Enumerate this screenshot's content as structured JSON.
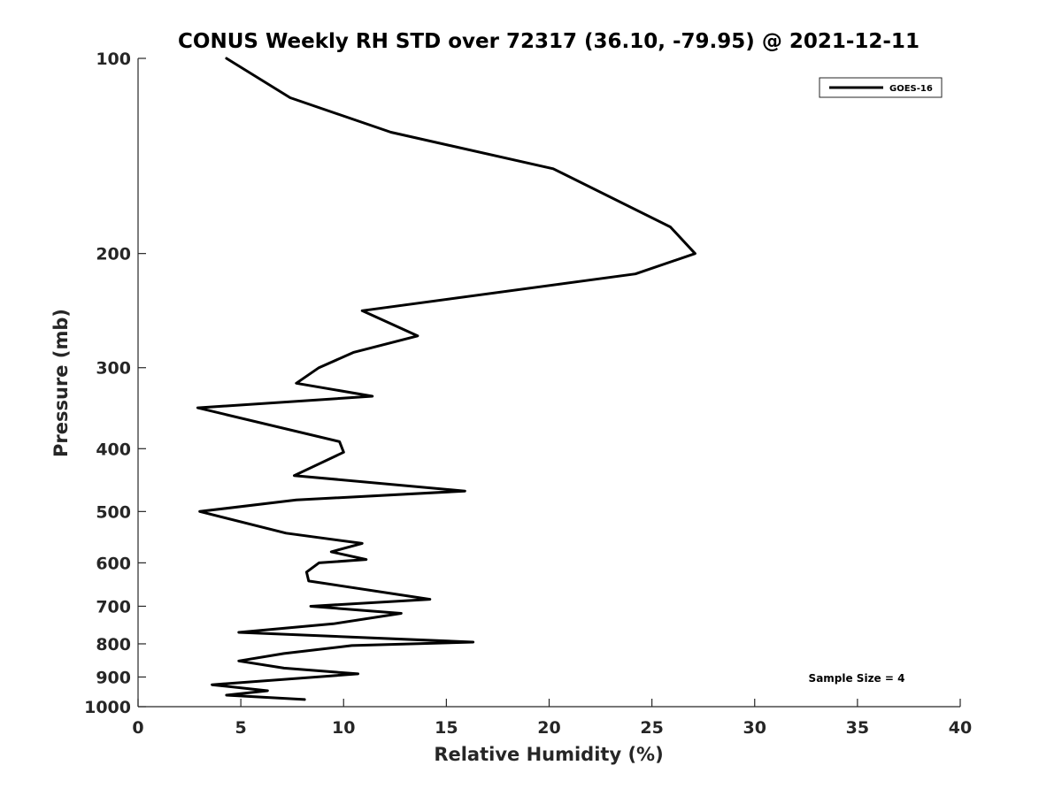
{
  "chart_data": {
    "type": "line",
    "title": "CONUS Weekly RH STD over 72317 (36.10, -79.95) @ 2021-12-11",
    "xlabel": "Relative Humidity (%)",
    "ylabel": "Pressure (mb)",
    "xlim": [
      0,
      40
    ],
    "ylim": [
      100,
      1000
    ],
    "y_scale": "log",
    "y_direction": "reversed",
    "x_ticks": [
      0,
      5,
      10,
      15,
      20,
      25,
      30,
      35,
      40
    ],
    "y_ticks": [
      100,
      200,
      300,
      400,
      500,
      600,
      700,
      800,
      900,
      1000
    ],
    "grid": false,
    "legend_position": "top-right",
    "series": [
      {
        "name": "GOES-16",
        "color": "#000000",
        "x": [
          4.3,
          7.4,
          12.3,
          20.2,
          25.9,
          27.1,
          24.2,
          10.9,
          13.6,
          10.5,
          8.8,
          7.7,
          11.4,
          2.9,
          9.8,
          10.0,
          7.6,
          15.9,
          7.7,
          3.0,
          7.2,
          10.9,
          9.4,
          11.1,
          8.8,
          8.2,
          8.3,
          14.2,
          8.4,
          12.8,
          9.5,
          4.9,
          16.3,
          10.4,
          7.1,
          4.9,
          7.1,
          10.7,
          3.6,
          6.3,
          4.3,
          8.1
        ],
        "y": [
          100,
          115,
          130,
          148,
          182,
          200,
          215,
          245,
          268,
          284,
          300,
          317,
          332,
          346,
          390,
          405,
          440,
          465,
          480,
          500,
          540,
          560,
          577,
          593,
          600,
          620,
          640,
          683,
          700,
          718,
          745,
          768,
          795,
          805,
          828,
          850,
          872,
          890,
          925,
          945,
          960,
          975
        ]
      }
    ],
    "annotations": [
      "Sample Size = 4"
    ]
  },
  "legend": {
    "label": "GOES-16"
  },
  "annotation": {
    "sample_size": "Sample Size = 4"
  }
}
